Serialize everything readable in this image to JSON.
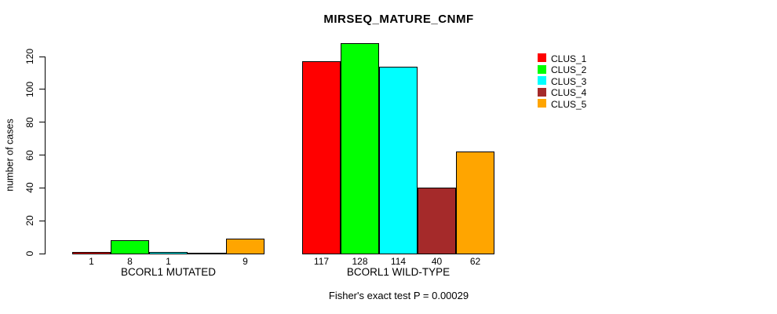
{
  "title": "MIRSEQ_MATURE_CNMF",
  "footer": "Fisher's exact test P = 0.00029",
  "y_axis": {
    "label": "number of cases",
    "ticks": [
      0,
      20,
      40,
      60,
      80,
      100,
      120
    ],
    "min": 0,
    "max": 120
  },
  "legend": {
    "position": "top-right",
    "entries": [
      {
        "label": "CLUS_1",
        "color": "#FF0000"
      },
      {
        "label": "CLUS_2",
        "color": "#00FF00"
      },
      {
        "label": "CLUS_3",
        "color": "#00FFFF"
      },
      {
        "label": "CLUS_4",
        "color": "#A52A2A"
      },
      {
        "label": "CLUS_5",
        "color": "#FFA500"
      }
    ]
  },
  "chart_data": {
    "type": "bar",
    "title": "MIRSEQ_MATURE_CNMF",
    "xlabel": "",
    "ylabel": "number of cases",
    "ylim": [
      0,
      120
    ],
    "grid": false,
    "legend_position": "top-right",
    "categories": [
      "BCORL1 MUTATED",
      "BCORL1 WILD-TYPE"
    ],
    "series": [
      {
        "name": "CLUS_1",
        "color": "#FF0000",
        "values": [
          1,
          117
        ]
      },
      {
        "name": "CLUS_2",
        "color": "#00FF00",
        "values": [
          8,
          128
        ]
      },
      {
        "name": "CLUS_3",
        "color": "#00FFFF",
        "values": [
          1,
          114
        ]
      },
      {
        "name": "CLUS_4",
        "color": "#A52A2A",
        "values": [
          0,
          40
        ]
      },
      {
        "name": "CLUS_5",
        "color": "#FFA500",
        "values": [
          9,
          62
        ]
      }
    ],
    "bar_value_labels": [
      [
        "1",
        "8",
        "1",
        "",
        "9"
      ],
      [
        "117",
        "128",
        "114",
        "40",
        "62"
      ]
    ],
    "annotation": "Fisher's exact test P = 0.00029"
  }
}
